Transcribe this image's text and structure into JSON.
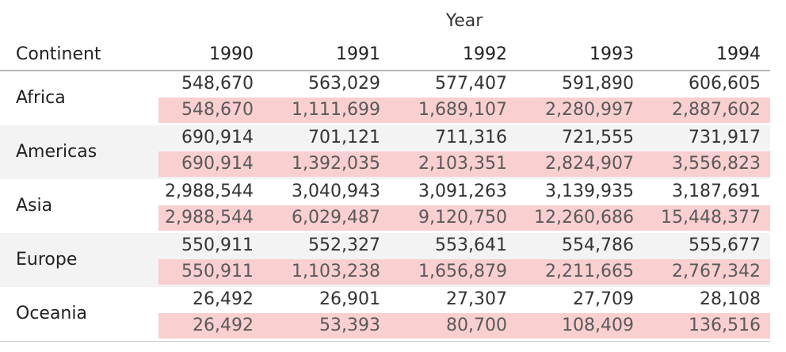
{
  "chart_data": {
    "type": "table",
    "column_header_title": "Year",
    "row_header_title": "Continent",
    "columns": [
      "1990",
      "1991",
      "1992",
      "1993",
      "1994"
    ],
    "highlight_color": "#f9cfcf",
    "rows": [
      {
        "label": "Africa",
        "values": [
          "548,670",
          "563,029",
          "577,407",
          "591,890",
          "606,605"
        ],
        "running_totals": [
          "548,670",
          "1,111,699",
          "1,689,107",
          "2,280,997",
          "2,887,602"
        ]
      },
      {
        "label": "Americas",
        "values": [
          "690,914",
          "701,121",
          "711,316",
          "721,555",
          "731,917"
        ],
        "running_totals": [
          "690,914",
          "1,392,035",
          "2,103,351",
          "2,824,907",
          "3,556,823"
        ]
      },
      {
        "label": "Asia",
        "values": [
          "2,988,544",
          "3,040,943",
          "3,091,263",
          "3,139,935",
          "3,187,691"
        ],
        "running_totals": [
          "2,988,544",
          "6,029,487",
          "9,120,750",
          "12,260,686",
          "15,448,377"
        ]
      },
      {
        "label": "Europe",
        "values": [
          "550,911",
          "552,327",
          "553,641",
          "554,786",
          "555,677"
        ],
        "running_totals": [
          "550,911",
          "1,103,238",
          "1,656,879",
          "2,211,665",
          "2,767,342"
        ]
      },
      {
        "label": "Oceania",
        "values": [
          "26,492",
          "26,901",
          "27,307",
          "27,709",
          "28,108"
        ],
        "running_totals": [
          "26,492",
          "53,393",
          "80,700",
          "108,409",
          "136,516"
        ]
      }
    ]
  }
}
